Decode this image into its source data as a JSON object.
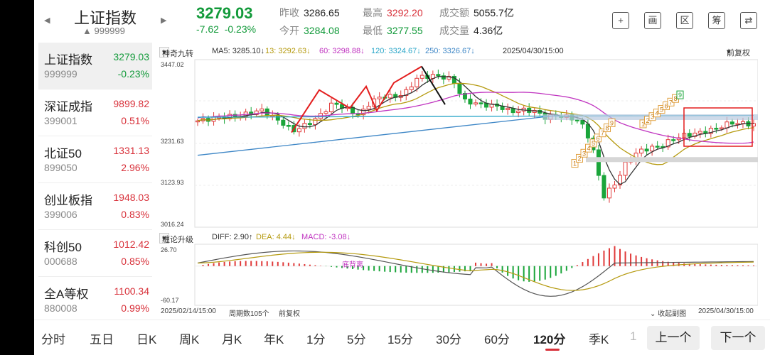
{
  "header": {
    "index_name": "上证指数",
    "index_code": "999999",
    "price": "3279.03",
    "change": "-7.62",
    "change_pct": "-0.23%",
    "quotes": [
      {
        "label": "昨收",
        "value": "3286.65",
        "color": "#222222"
      },
      {
        "label": "最高",
        "value": "3292.20",
        "color": "#d8313a"
      },
      {
        "label": "成交额",
        "value": "5055.7亿",
        "color": "#222222"
      },
      {
        "label": "今开",
        "value": "3284.08",
        "color": "#129a3a"
      },
      {
        "label": "最低",
        "value": "3277.55",
        "color": "#129a3a"
      },
      {
        "label": "成交量",
        "value": "4.36亿",
        "color": "#222222"
      }
    ],
    "icons": [
      {
        "name": "add-watchlist-icon",
        "glyph": "+"
      },
      {
        "name": "draw-icon",
        "glyph": "画"
      },
      {
        "name": "range-icon",
        "glyph": "区"
      },
      {
        "name": "chip-icon",
        "glyph": "筹"
      },
      {
        "name": "rotate-screen-icon",
        "glyph": "⇄"
      }
    ]
  },
  "sidebar": {
    "items": [
      {
        "name": "上证指数",
        "code": "999999",
        "price": "3279.03",
        "pct": "-0.23%",
        "dir": "down"
      },
      {
        "name": "深证成指",
        "code": "399001",
        "price": "9899.82",
        "pct": "0.51%",
        "dir": "up"
      },
      {
        "name": "北证50",
        "code": "899050",
        "price": "1331.13",
        "pct": "2.96%",
        "dir": "up"
      },
      {
        "name": "创业板指",
        "code": "399006",
        "price": "1948.03",
        "pct": "0.83%",
        "dir": "up"
      },
      {
        "name": "科创50",
        "code": "000688",
        "price": "1012.42",
        "pct": "0.85%",
        "dir": "up"
      },
      {
        "name": "全A等权",
        "code": "880008",
        "price": "1100.34",
        "pct": "0.99%",
        "dir": "up"
      }
    ]
  },
  "main_chart": {
    "indicator": "神奇九转",
    "ma": [
      {
        "label": "MA5: 3285.10↓",
        "color": "#333333"
      },
      {
        "label": "13: 3292.63↓",
        "color": "#b59a0f"
      },
      {
        "label": "60: 3298.88↓",
        "color": "#c034c0"
      },
      {
        "label": "120: 3324.67↓",
        "color": "#2aa6c8"
      },
      {
        "label": "250: 3326.67↓",
        "color": "#3d86c6"
      }
    ],
    "datetime": "2025/04/30/15:00",
    "adjust": "前复权",
    "y_labels": [
      "3447.02",
      "3231.63",
      "3123.93",
      "3016.24"
    ],
    "ylim": [
      3016.24,
      3447.02
    ]
  },
  "sub_chart": {
    "indicator": "缠论升级",
    "diff": "DIFF: 2.90↑",
    "dea": "DEA: 4.44↓",
    "macd": "MACD: -3.08↓",
    "y_top": "26.70",
    "y_bottom": "-60.17",
    "annotation": "底背离"
  },
  "footer": {
    "start": "2025/02/14/15:00",
    "periods": "周期数105个",
    "adjust": "前复权",
    "collapse": "收起副图",
    "end": "2025/04/30/15:00"
  },
  "tabs": {
    "items": [
      "分时",
      "五日",
      "日K",
      "周K",
      "月K",
      "年K",
      "1分",
      "5分",
      "15分",
      "30分",
      "60分",
      "120分",
      "季K",
      "1"
    ],
    "selected": "120分",
    "prev": "上一个",
    "next": "下一个"
  },
  "chart_data": {
    "type": "candlestick",
    "ylim": [
      3016.24,
      3447.02
    ],
    "y_ticks": [
      3447.02,
      3231.63,
      3123.93,
      3016.24
    ],
    "x_range": [
      "2025/02/14/15:00",
      "2025/04/30/15:00"
    ],
    "period_count": 105,
    "grid": true,
    "nine_turn_labels": [
      "1",
      "2",
      "3",
      "4",
      "5",
      "6",
      "7",
      "8",
      "9"
    ],
    "macd": {
      "ylim": [
        -60.17,
        26.7
      ],
      "diff": 2.9,
      "dea": 4.44,
      "macd": -3.08
    }
  }
}
